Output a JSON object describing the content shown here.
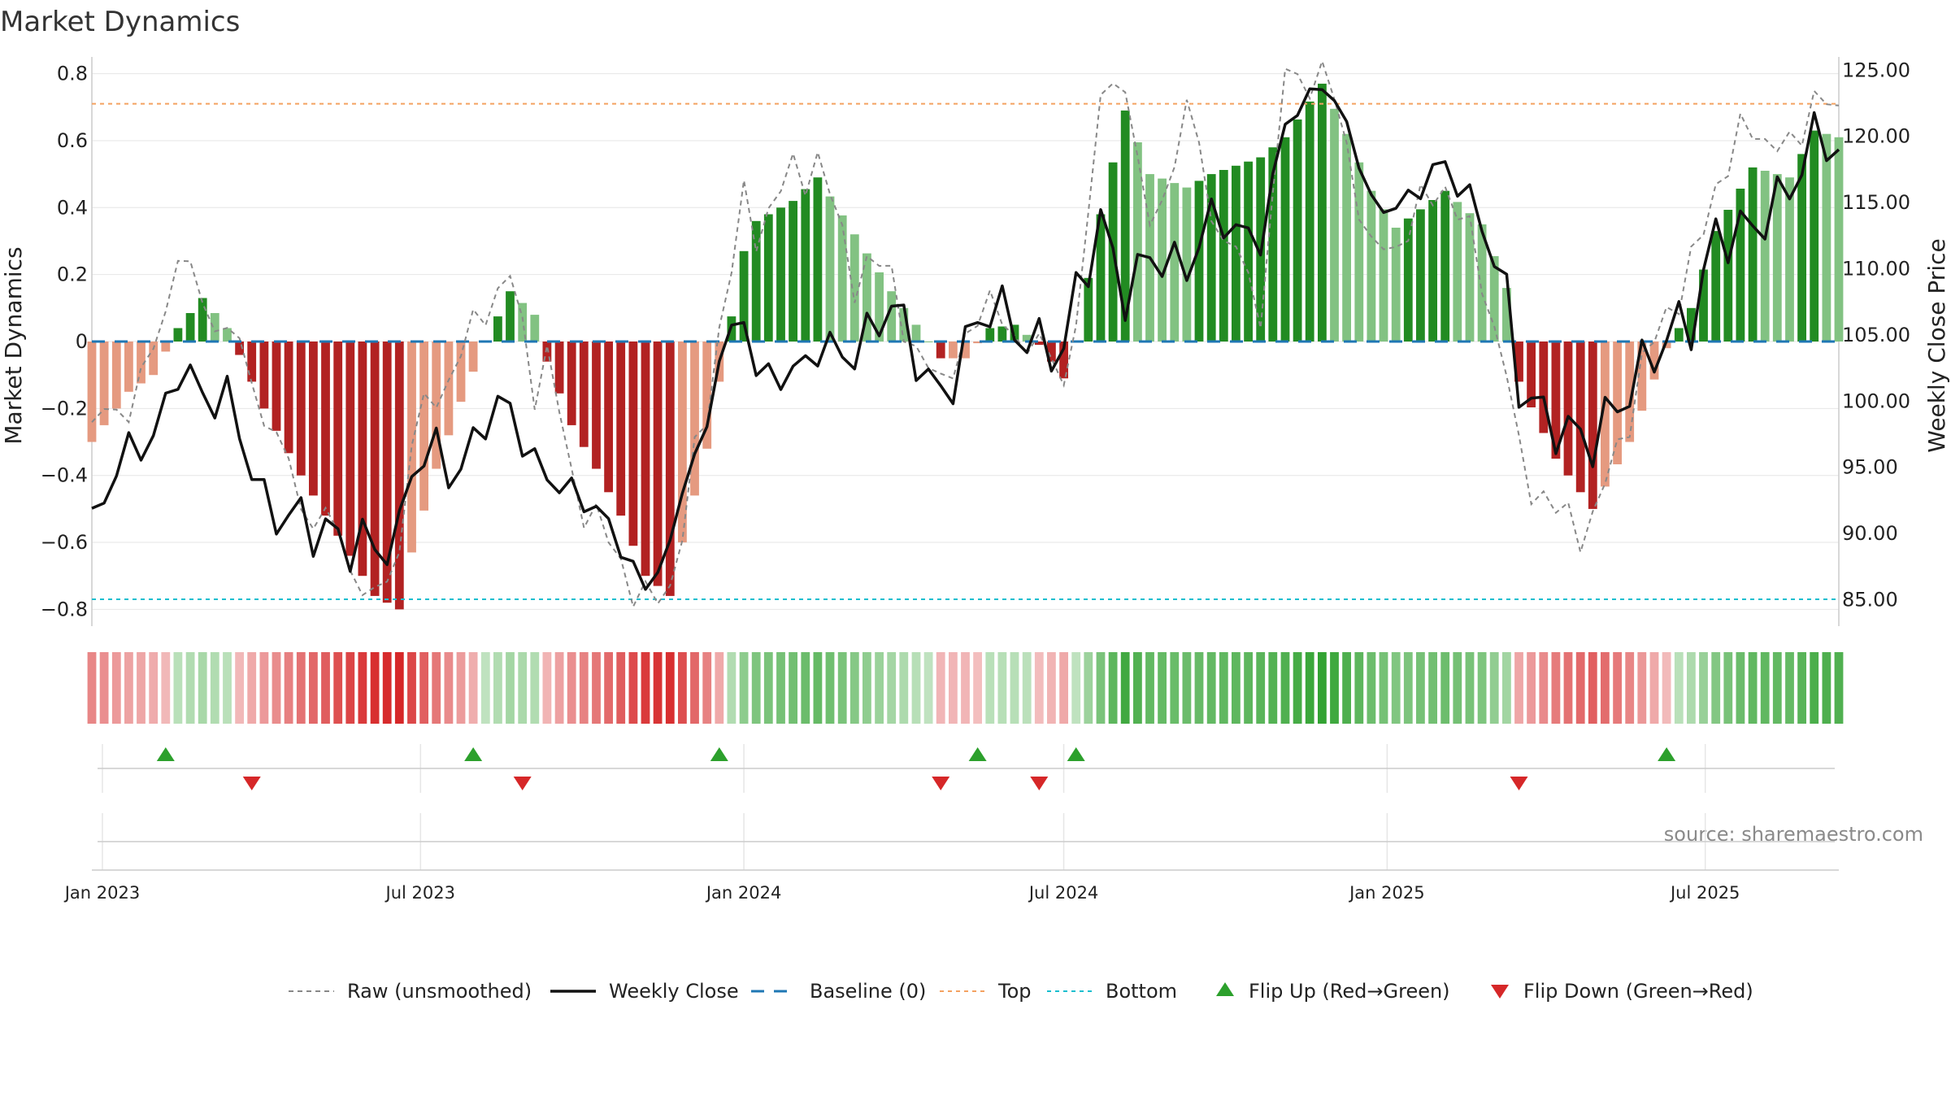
{
  "chart_data": {
    "type": "bar",
    "title": "Market Dynamics",
    "ylabel_left": "Market Dynamics",
    "ylabel_right": "Weekly Close Price",
    "ylim_left": [
      -0.85,
      0.85
    ],
    "ylim_right": [
      83.0,
      126.0
    ],
    "yticks_left": [
      {
        "value": 0.8,
        "label": "0.8"
      },
      {
        "value": 0.6,
        "label": "0.6"
      },
      {
        "value": 0.4,
        "label": "0.4"
      },
      {
        "value": 0.2,
        "label": "0.2"
      },
      {
        "value": 0,
        "label": "0"
      },
      {
        "value": -0.2,
        "label": "−0.2"
      },
      {
        "value": -0.4,
        "label": "−0.4"
      },
      {
        "value": -0.6,
        "label": "−0.6"
      },
      {
        "value": -0.8,
        "label": "−0.8"
      }
    ],
    "yticks_right": [
      {
        "value": 125,
        "label": "125.00"
      },
      {
        "value": 120,
        "label": "120.00"
      },
      {
        "value": 115,
        "label": "115.00"
      },
      {
        "value": 110,
        "label": "110.00"
      },
      {
        "value": 105,
        "label": "105.00"
      },
      {
        "value": 100,
        "label": "100.00"
      },
      {
        "value": 95,
        "label": "95.00"
      },
      {
        "value": 90,
        "label": "90.00"
      },
      {
        "value": 85,
        "label": "85.00"
      }
    ],
    "x_start": "2022-12-26",
    "x_end": "2025-09-15",
    "xticks": [
      {
        "date": "2023-01-01",
        "label": "Jan 2023"
      },
      {
        "date": "2023-07-01",
        "label": "Jul 2023"
      },
      {
        "date": "2024-01-01",
        "label": "Jan 2024"
      },
      {
        "date": "2024-07-01",
        "label": "Jul 2024"
      },
      {
        "date": "2025-01-01",
        "label": "Jan 2025"
      },
      {
        "date": "2025-07-01",
        "label": "Jul 2025"
      }
    ],
    "thresholds": {
      "top": 0.71,
      "bottom": -0.77,
      "baseline": 0
    },
    "colors": {
      "strong_up": "#228b22",
      "weak_up": "#82c282",
      "strong_down": "#b22222",
      "weak_down": "#e59a80",
      "close": "#111111",
      "raw": "#888888",
      "baseline": "#1f77b4",
      "top": "#f4a261",
      "bottom": "#17becf",
      "flip_up": "#2ca02c",
      "flip_down": "#d62728"
    },
    "anchors": [
      {
        "date": "2022-12-26",
        "md": -0.3,
        "raw": -0.26,
        "close": 91.0
      },
      {
        "date": "2023-01-16",
        "md": -0.15,
        "raw": -0.18,
        "close": 96.5
      },
      {
        "date": "2023-01-30",
        "md": -0.1,
        "raw": -0.05,
        "close": 97.0
      },
      {
        "date": "2023-02-13",
        "md": 0.04,
        "raw": 0.28,
        "close": 102.5
      },
      {
        "date": "2023-02-27",
        "md": 0.13,
        "raw": 0.1,
        "close": 100.5
      },
      {
        "date": "2023-03-13",
        "md": 0.04,
        "raw": 0.05,
        "close": 100.0
      },
      {
        "date": "2023-03-20",
        "md": -0.04,
        "raw": -0.04,
        "close": 98.0
      },
      {
        "date": "2023-04-03",
        "md": -0.2,
        "raw": -0.2,
        "close": 92.0
      },
      {
        "date": "2023-04-24",
        "md": -0.4,
        "raw": -0.48,
        "close": 91.0
      },
      {
        "date": "2023-05-15",
        "md": -0.58,
        "raw": -0.58,
        "close": 89.5
      },
      {
        "date": "2023-06-05",
        "md": -0.76,
        "raw": -0.8,
        "close": 89.0
      },
      {
        "date": "2023-06-19",
        "md": -0.8,
        "raw": -0.6,
        "close": 89.5
      },
      {
        "date": "2023-06-26",
        "md": -0.63,
        "raw": -0.3,
        "close": 95.5
      },
      {
        "date": "2023-07-10",
        "md": -0.38,
        "raw": -0.15,
        "close": 96.0
      },
      {
        "date": "2023-07-24",
        "md": -0.18,
        "raw": -0.05,
        "close": 94.5
      },
      {
        "date": "2023-08-07",
        "md": 0.0,
        "raw": 0.12,
        "close": 99.0
      },
      {
        "date": "2023-08-21",
        "md": 0.15,
        "raw": 0.18,
        "close": 99.5
      },
      {
        "date": "2023-09-04",
        "md": 0.08,
        "raw": -0.12,
        "close": 95.0
      },
      {
        "date": "2023-09-11",
        "md": -0.06,
        "raw": -0.05,
        "close": 94.5
      },
      {
        "date": "2023-09-25",
        "md": -0.25,
        "raw": -0.4,
        "close": 93.0
      },
      {
        "date": "2023-10-09",
        "md": -0.38,
        "raw": -0.55,
        "close": 92.0
      },
      {
        "date": "2023-10-23",
        "md": -0.52,
        "raw": -0.65,
        "close": 89.0
      },
      {
        "date": "2023-11-06",
        "md": -0.7,
        "raw": -0.8,
        "close": 85.8
      },
      {
        "date": "2023-11-20",
        "md": -0.76,
        "raw": -0.72,
        "close": 89.0
      },
      {
        "date": "2023-11-27",
        "md": -0.6,
        "raw": -0.55,
        "close": 93.5
      },
      {
        "date": "2023-12-11",
        "md": -0.32,
        "raw": -0.2,
        "close": 98.0
      },
      {
        "date": "2023-12-18",
        "md": -0.12,
        "raw": 0.05,
        "close": 103.5
      },
      {
        "date": "2024-01-01",
        "md": 0.27,
        "raw": 0.4,
        "close": 106.5
      },
      {
        "date": "2024-01-08",
        "md": 0.36,
        "raw": 0.34,
        "close": 102.0
      },
      {
        "date": "2024-01-29",
        "md": 0.42,
        "raw": 0.5,
        "close": 102.0
      },
      {
        "date": "2024-02-12",
        "md": 0.49,
        "raw": 0.54,
        "close": 104.0
      },
      {
        "date": "2024-03-04",
        "md": 0.32,
        "raw": 0.2,
        "close": 103.5
      },
      {
        "date": "2024-03-25",
        "md": 0.15,
        "raw": 0.22,
        "close": 107.5
      },
      {
        "date": "2024-04-08",
        "md": 0.05,
        "raw": -0.08,
        "close": 103.5
      },
      {
        "date": "2024-04-22",
        "md": -0.05,
        "raw": -0.08,
        "close": 100.0
      },
      {
        "date": "2024-05-06",
        "md": -0.05,
        "raw": -0.05,
        "close": 104.0
      },
      {
        "date": "2024-05-20",
        "md": 0.04,
        "raw": 0.18,
        "close": 107.5
      },
      {
        "date": "2024-06-03",
        "md": 0.05,
        "raw": -0.05,
        "close": 105.5
      },
      {
        "date": "2024-06-17",
        "md": -0.01,
        "raw": 0.05,
        "close": 104.0
      },
      {
        "date": "2024-07-01",
        "md": -0.11,
        "raw": -0.18,
        "close": 104.0
      },
      {
        "date": "2024-07-08",
        "md": 0.0,
        "raw": 0.1,
        "close": 108.0
      },
      {
        "date": "2024-07-22",
        "md": 0.38,
        "raw": 0.7,
        "close": 113.5
      },
      {
        "date": "2024-08-05",
        "md": 0.69,
        "raw": 0.8,
        "close": 108.0
      },
      {
        "date": "2024-08-19",
        "md": 0.5,
        "raw": 0.3,
        "close": 111.0
      },
      {
        "date": "2024-09-09",
        "md": 0.46,
        "raw": 0.7,
        "close": 110.0
      },
      {
        "date": "2024-09-23",
        "md": 0.5,
        "raw": 0.4,
        "close": 114.0
      },
      {
        "date": "2024-10-21",
        "md": 0.55,
        "raw": 0.1,
        "close": 112.0
      },
      {
        "date": "2024-11-04",
        "md": 0.61,
        "raw": 0.78,
        "close": 121.0
      },
      {
        "date": "2024-11-25",
        "md": 0.77,
        "raw": 0.8,
        "close": 124.0
      },
      {
        "date": "2024-12-09",
        "md": 0.62,
        "raw": 0.6,
        "close": 121.0
      },
      {
        "date": "2024-12-23",
        "md": 0.45,
        "raw": 0.25,
        "close": 115.0
      },
      {
        "date": "2025-01-06",
        "md": 0.34,
        "raw": 0.3,
        "close": 114.5
      },
      {
        "date": "2025-02-03",
        "md": 0.45,
        "raw": 0.48,
        "close": 118.0
      },
      {
        "date": "2025-02-24",
        "md": 0.35,
        "raw": 0.2,
        "close": 113.5
      },
      {
        "date": "2025-03-10",
        "md": 0.16,
        "raw": -0.1,
        "close": 108.0
      },
      {
        "date": "2025-03-17",
        "md": -0.12,
        "raw": -0.35,
        "close": 101.0
      },
      {
        "date": "2025-04-07",
        "md": -0.35,
        "raw": -0.52,
        "close": 98.0
      },
      {
        "date": "2025-04-28",
        "md": -0.5,
        "raw": -0.55,
        "close": 97.0
      },
      {
        "date": "2025-05-19",
        "md": -0.3,
        "raw": -0.2,
        "close": 101.0
      },
      {
        "date": "2025-06-09",
        "md": -0.02,
        "raw": 0.1,
        "close": 105.0
      },
      {
        "date": "2025-06-23",
        "md": 0.1,
        "raw": 0.2,
        "close": 106.0
      },
      {
        "date": "2025-07-07",
        "md": 0.33,
        "raw": 0.48,
        "close": 112.5
      },
      {
        "date": "2025-07-28",
        "md": 0.52,
        "raw": 0.65,
        "close": 113.0
      },
      {
        "date": "2025-08-18",
        "md": 0.49,
        "raw": 0.55,
        "close": 116.0
      },
      {
        "date": "2025-09-01",
        "md": 0.63,
        "raw": 0.75,
        "close": 120.0
      },
      {
        "date": "2025-09-15",
        "md": 0.61,
        "raw": 0.65,
        "close": 119.0
      }
    ],
    "flips_up": [
      "2023-02-06",
      "2023-07-31",
      "2023-12-18",
      "2024-05-13",
      "2024-07-08",
      "2025-06-09"
    ],
    "flips_down": [
      "2023-03-27",
      "2023-08-28",
      "2024-04-22",
      "2024-06-17",
      "2025-03-17"
    ],
    "legend": [
      {
        "key": "raw",
        "label": "Raw (unsmoothed)"
      },
      {
        "key": "close",
        "label": "Weekly Close"
      },
      {
        "key": "baseline",
        "label": "Baseline (0)"
      },
      {
        "key": "top",
        "label": "Top"
      },
      {
        "key": "bottom",
        "label": "Bottom"
      },
      {
        "key": "flip_up",
        "label": "Flip Up (Red→Green)"
      },
      {
        "key": "flip_down",
        "label": "Flip Down (Green→Red)"
      }
    ],
    "legend_position": "bottom-center",
    "source": "source: sharemaestro.com"
  }
}
